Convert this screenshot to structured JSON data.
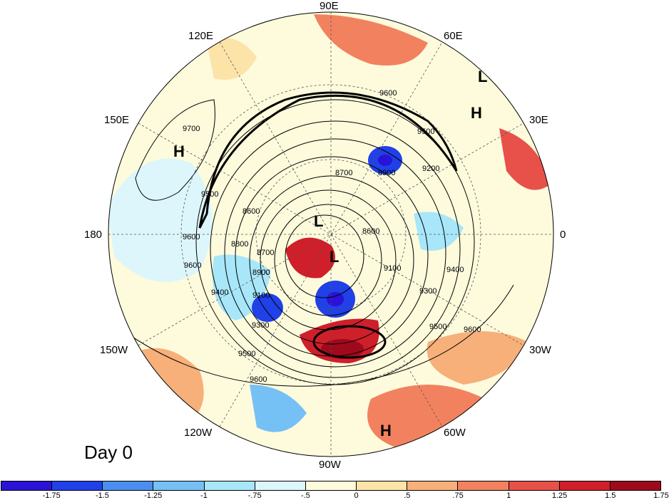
{
  "map": {
    "projection": "polar-stereographic-north",
    "day_label": "Day 0",
    "longitude_labels": [
      "90E",
      "60E",
      "30E",
      "0",
      "30W",
      "60W",
      "90W",
      "120W",
      "150W",
      "180",
      "150E",
      "120E"
    ],
    "pressure_centers": [
      "L",
      "H",
      "H",
      "L",
      "L",
      "H"
    ],
    "contour_labels": [
      "9600",
      "9500",
      "9200",
      "8700",
      "8900",
      "8600",
      "8800",
      "8700",
      "9100",
      "8900",
      "9300",
      "9100",
      "9400",
      "9300",
      "9500",
      "9600",
      "9600",
      "9500",
      "9700",
      "9500",
      "9600",
      "9400",
      "9600",
      "8600"
    ]
  },
  "colorbar": {
    "colors": [
      "#2a12d6",
      "#2040e8",
      "#4a8ef0",
      "#75c0f5",
      "#a8e6fa",
      "#dcf6fb",
      "#fdfbdc",
      "#fce3a8",
      "#f7b07a",
      "#f2825f",
      "#e8504a",
      "#cf1f2b",
      "#9e0a1c"
    ],
    "tick_labels": [
      "-1.75",
      "-1.5",
      "-1.25",
      "-1",
      "-.75",
      "-.5",
      "0",
      ".5",
      ".75",
      "1",
      "1.25",
      "1.5",
      "1.75"
    ]
  }
}
